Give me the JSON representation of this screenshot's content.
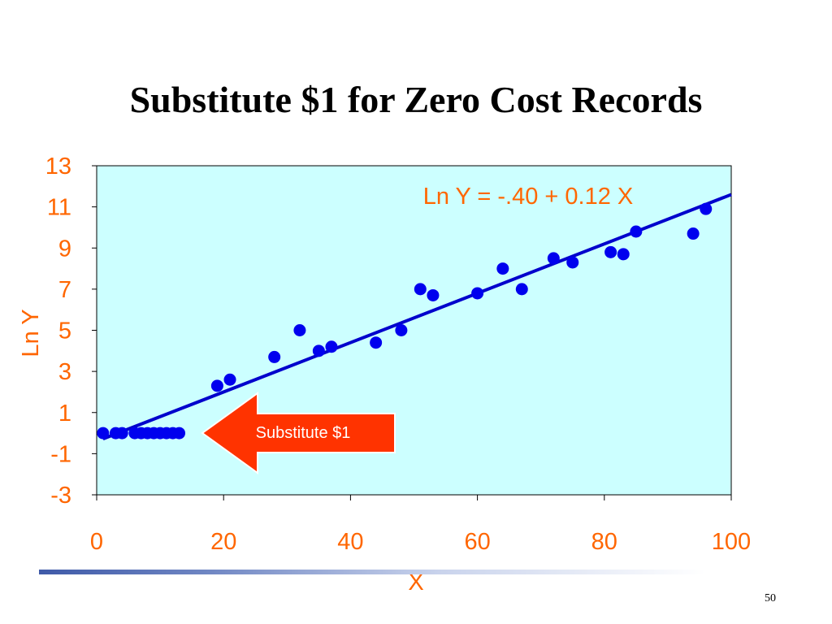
{
  "slide": {
    "title": "Substitute $1 for Zero Cost Records",
    "page_number": "50"
  },
  "colors": {
    "plot_background": "#ccffff",
    "points": "#0000ee",
    "regression_line": "#0000cc",
    "label_text": "#ff6600",
    "arrow": "#ff3300"
  },
  "chart_data": {
    "type": "scatter",
    "xlabel": "X",
    "ylabel": "Ln Y",
    "xlim": [
      0,
      100
    ],
    "ylim": [
      -3,
      13
    ],
    "x_ticks": [
      "0",
      "20",
      "40",
      "60",
      "80",
      "100"
    ],
    "y_ticks": [
      "13",
      "11",
      "9",
      "7",
      "5",
      "3",
      "1",
      "-1",
      "-3"
    ],
    "grid": false,
    "series": [
      {
        "x": [
          1,
          3,
          4,
          6,
          7,
          8,
          9,
          10,
          11,
          12,
          13,
          19,
          21,
          28,
          32,
          35,
          37,
          44,
          48,
          51,
          53,
          60,
          64,
          67,
          72,
          75,
          81,
          83,
          85,
          94,
          96
        ],
        "y": [
          0,
          0,
          0,
          0,
          0,
          0,
          0,
          0,
          0,
          0,
          0,
          2.3,
          2.6,
          3.7,
          5.0,
          4.0,
          4.2,
          4.4,
          5.0,
          7.0,
          6.7,
          6.8,
          8.0,
          7.0,
          8.5,
          8.3,
          8.8,
          8.7,
          9.8,
          9.7,
          10.9
        ]
      }
    ],
    "regression": {
      "intercept": -0.4,
      "slope": 0.12,
      "x_range": [
        1,
        100
      ]
    },
    "annotations": {
      "equation": "Ln Y = -.40 + 0.12 X",
      "arrow_label": "Substitute $1"
    }
  }
}
